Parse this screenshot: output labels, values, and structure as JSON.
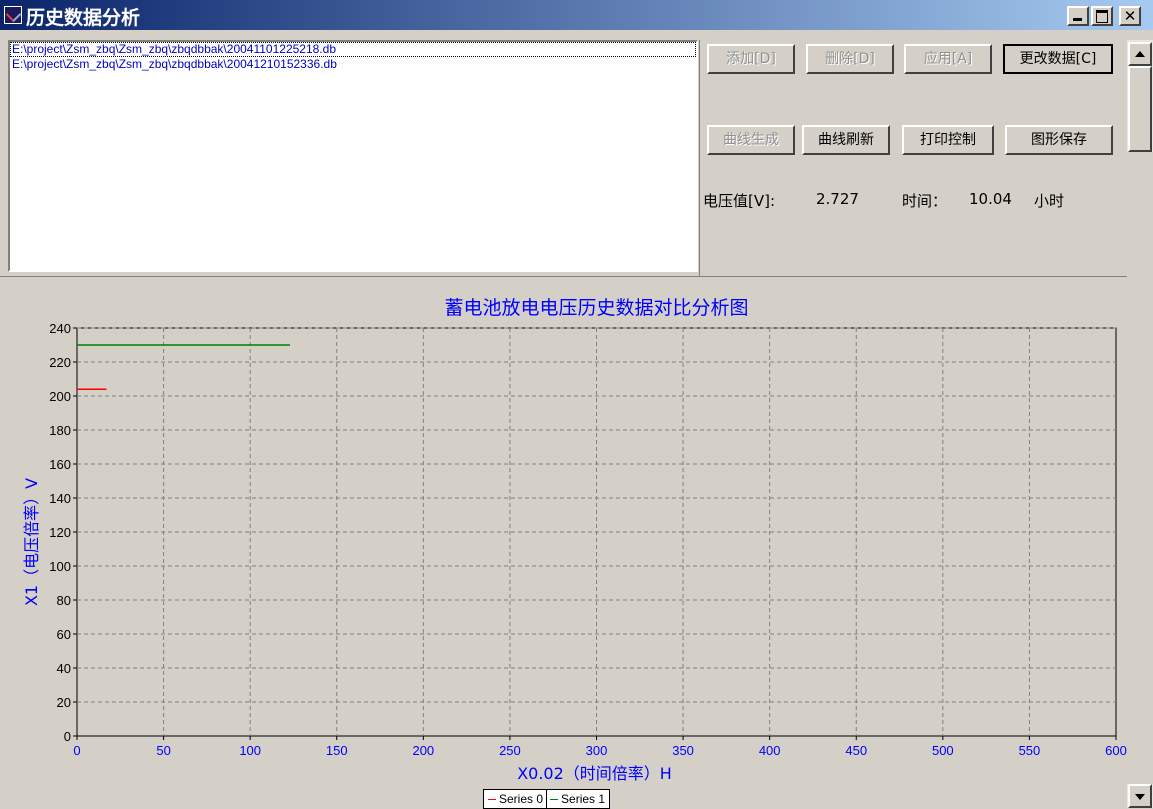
{
  "window": {
    "title": "历史数据分析",
    "controls": [
      "minimize",
      "maximize",
      "close"
    ]
  },
  "file_list": [
    "E:\\project\\Zsm_zbq\\Zsm_zbq\\zbqdbbak\\20041101225218.db",
    "E:\\project\\Zsm_zbq\\Zsm_zbq\\zbqdbbak\\20041210152336.db"
  ],
  "buttons": {
    "add": "添加[D]",
    "delete": "删除[D]",
    "apply": "应用[A]",
    "change_data": "更改数据[C]",
    "curve_generate": "曲线生成",
    "curve_refresh": "曲线刷新",
    "print_control": "打印控制",
    "save_graph": "图形保存"
  },
  "readout": {
    "voltage_label": "电压值[V]:",
    "voltage_value": "2.727",
    "time_label": "时间：",
    "time_value": "10.04",
    "time_unit": "小时"
  },
  "colors": {
    "chart_text": "#0000ff",
    "series0": "#ff0000",
    "series1": "#008000",
    "title_bar_start": "#0a246a",
    "title_bar_end": "#a6caf0"
  },
  "icons": {
    "app": "chart-app-icon",
    "minimize": "minimize-icon",
    "maximize": "maximize-icon",
    "close": "close-icon",
    "scroll_up": "arrow-up-icon",
    "scroll_down": "arrow-down-icon"
  },
  "chart_data": {
    "type": "line",
    "title": "蓄电池放电电压历史数据对比分析图",
    "xlabel": "X0.02（时间倍率）H",
    "ylabel": "X1（电压倍率）V",
    "xlim": [
      0,
      600
    ],
    "ylim": [
      0,
      240
    ],
    "xticks": [
      0,
      50,
      100,
      150,
      200,
      250,
      300,
      350,
      400,
      450,
      500,
      550,
      600
    ],
    "yticks": [
      0,
      20,
      40,
      60,
      80,
      100,
      120,
      140,
      160,
      180,
      200,
      220,
      240
    ],
    "grid": true,
    "legend_position": "bottom-center",
    "series": [
      {
        "name": "Series 0",
        "color": "#ff0000",
        "x": [
          0,
          17
        ],
        "y": [
          204,
          204
        ]
      },
      {
        "name": "Series 1",
        "color": "#008000",
        "x": [
          0,
          123
        ],
        "y": [
          230,
          230
        ]
      }
    ]
  }
}
